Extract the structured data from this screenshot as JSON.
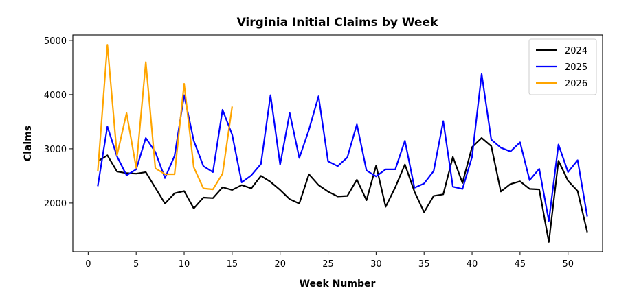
{
  "chart_data": {
    "type": "line",
    "title": "Virginia Initial Claims by Week",
    "xlabel": "Week Number",
    "ylabel": "Claims",
    "xlim": [
      -1.6,
      53.6
    ],
    "ylim": [
      1100,
      5100
    ],
    "xticks": [
      0,
      5,
      10,
      15,
      20,
      25,
      30,
      35,
      40,
      45,
      50
    ],
    "yticks": [
      2000,
      3000,
      4000,
      5000
    ],
    "grid": false,
    "legend_position": "top-right",
    "series": [
      {
        "name": "2024",
        "color": "#000000",
        "x": [
          1,
          2,
          3,
          4,
          5,
          6,
          7,
          8,
          9,
          10,
          11,
          12,
          13,
          14,
          15,
          16,
          17,
          18,
          19,
          20,
          21,
          22,
          23,
          24,
          25,
          26,
          27,
          28,
          29,
          30,
          31,
          32,
          33,
          34,
          35,
          36,
          37,
          38,
          39,
          40,
          41,
          42,
          43,
          44,
          45,
          46,
          47,
          48,
          49,
          50,
          51,
          52
        ],
        "values": [
          2770,
          2880,
          2580,
          2550,
          2540,
          2570,
          2280,
          1990,
          2180,
          2220,
          1900,
          2100,
          2090,
          2290,
          2240,
          2330,
          2270,
          2500,
          2390,
          2240,
          2070,
          1990,
          2530,
          2330,
          2210,
          2120,
          2130,
          2430,
          2050,
          2690,
          1930,
          2290,
          2710,
          2210,
          1830,
          2130,
          2160,
          2850,
          2370,
          3030,
          3200,
          3050,
          2210,
          2350,
          2400,
          2260,
          2250,
          1280,
          2780,
          2410,
          2220,
          1460
        ]
      },
      {
        "name": "2025",
        "color": "#0000ff",
        "x": [
          1,
          2,
          3,
          4,
          5,
          6,
          7,
          8,
          9,
          10,
          11,
          12,
          13,
          14,
          15,
          16,
          17,
          18,
          19,
          20,
          21,
          22,
          23,
          24,
          25,
          26,
          27,
          28,
          29,
          30,
          31,
          32,
          33,
          34,
          35,
          36,
          37,
          38,
          39,
          40,
          41,
          42,
          43,
          44,
          45,
          46,
          47,
          48,
          49,
          50,
          51,
          52
        ],
        "values": [
          2310,
          3410,
          2860,
          2510,
          2620,
          3200,
          2940,
          2460,
          2870,
          3990,
          3150,
          2680,
          2570,
          3720,
          3260,
          2380,
          2510,
          2720,
          3990,
          2710,
          3660,
          2830,
          3350,
          3970,
          2770,
          2680,
          2840,
          3450,
          2600,
          2490,
          2620,
          2620,
          3150,
          2280,
          2360,
          2590,
          3510,
          2300,
          2260,
          2850,
          4380,
          3170,
          3020,
          2950,
          3120,
          2420,
          2630,
          1670,
          3080,
          2570,
          2790,
          1750
        ]
      },
      {
        "name": "2026",
        "color": "#ffa500",
        "x": [
          1,
          2,
          3,
          4,
          5,
          6,
          7,
          8,
          9,
          10,
          11,
          12,
          13,
          14,
          15
        ],
        "values": [
          2580,
          4920,
          2880,
          3660,
          2650,
          4600,
          2640,
          2530,
          2530,
          4200,
          2660,
          2270,
          2250,
          2540,
          3780
        ]
      }
    ]
  }
}
